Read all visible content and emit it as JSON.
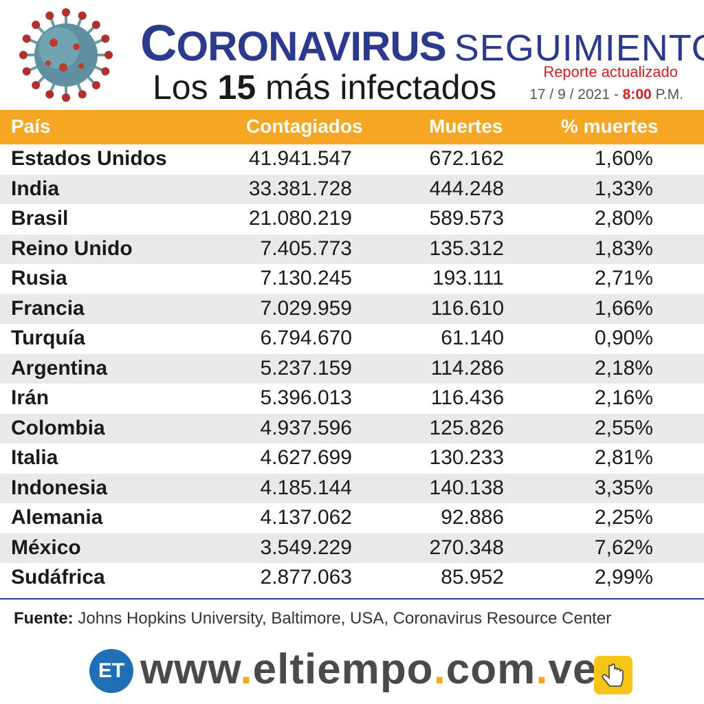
{
  "header": {
    "title_first_letter": "C",
    "title_rest": "ORONAVIRUS",
    "title_sub": "SEGUIMIENTO",
    "subtitle_pre": "Los ",
    "subtitle_num": "15",
    "subtitle_post": " más infectados",
    "report_label": "Reporte actualizado",
    "report_date": "17  / 9 / 2021 - ",
    "report_time": "8:00",
    "report_ampm": " P.M."
  },
  "colors": {
    "header_band": "#f5a623",
    "title_blue": "#2b3a8c",
    "accent_red": "#cc1f1f",
    "row_alt": "#e9e9e9"
  },
  "chart_data": {
    "type": "table",
    "columns": [
      "País",
      "Contagiados",
      "Muertes",
      "% muertes"
    ],
    "rows": [
      [
        "Estados Unidos",
        "41.941.547",
        "672.162",
        "1,60%"
      ],
      [
        "India",
        "33.381.728",
        "444.248",
        "1,33%"
      ],
      [
        "Brasil",
        "21.080.219",
        "589.573",
        "2,80%"
      ],
      [
        "Reino Unido",
        "7.405.773",
        "135.312",
        "1,83%"
      ],
      [
        "Rusia",
        "7.130.245",
        "193.111",
        "2,71%"
      ],
      [
        "Francia",
        "7.029.959",
        "116.610",
        "1,66%"
      ],
      [
        "Turquía",
        "6.794.670",
        "61.140",
        "0,90%"
      ],
      [
        "Argentina",
        "5.237.159",
        "114.286",
        "2,18%"
      ],
      [
        "Irán",
        "5.396.013",
        "116.436",
        "2,16%"
      ],
      [
        "Colombia",
        "4.937.596",
        "125.826",
        "2,55%"
      ],
      [
        "Italia",
        "4.627.699",
        "130.233",
        "2,81%"
      ],
      [
        "Indonesia",
        "4.185.144",
        "140.138",
        "3,35%"
      ],
      [
        "Alemania",
        "4.137.062",
        "92.886",
        "2,25%"
      ],
      [
        "México",
        "3.549.229",
        "270.348",
        "7,62%"
      ],
      [
        "Sudáfrica",
        "2.877.063",
        "85.952",
        "2,99%"
      ]
    ]
  },
  "footer": {
    "source_label": "Fuente:",
    "source_text": " Johns Hopkins University, Baltimore, USA, Coronavirus Resource Center",
    "logo_text": "ET",
    "url_www": "www",
    "url_name": "eltiempo",
    "url_com": "com",
    "url_ve": "ve",
    "url_dot": "."
  }
}
